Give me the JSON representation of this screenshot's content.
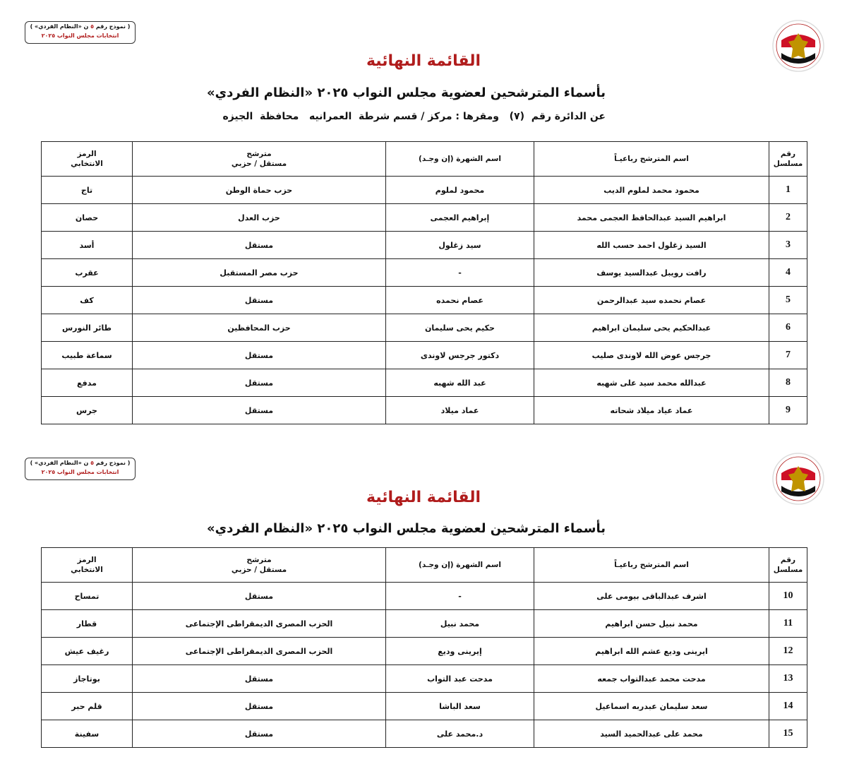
{
  "form_box": {
    "line1_pre": "( نموذج رقم ",
    "line1_num": "٥",
    "line1_post": " ن «النظام الفردي» )",
    "line2": "انتخابات مجلس النواب ٢٠٢٥"
  },
  "logo": {
    "text_ar": "الهيئة الوطنية للانتخابات",
    "text_en": "National Election Authority - Egypt",
    "colors": {
      "red": "#ce1126",
      "black": "#000000",
      "gold": "#c09300"
    }
  },
  "title": "القائمة النهائية",
  "subtitle": "بأسماء المترشحين لعضوية مجلس النواب ٢٠٢٥ «النظام الفردي»",
  "district_line": "عن الدائرة رقم  (٧)   ومقرها : مركز / قسم شرطة  العمرانيه   محافظة  الجيزه",
  "columns": {
    "serial": [
      "رقم",
      "مسلسل"
    ],
    "full_name": "اسم المترشح رباعيـاً",
    "known_as": "اسم الشهرة (إن وجـد)",
    "type": [
      "مترشح",
      "مستقل / حزبي"
    ],
    "symbol": [
      "الرمز",
      "الانتخابي"
    ]
  },
  "page1_rows": [
    {
      "n": "1",
      "name": "محمود محمد لملوم الديب",
      "known": "محمود لملوم",
      "type": "حزب حماة الوطن",
      "symbol": "تاج"
    },
    {
      "n": "2",
      "name": "ابراهيم السيد عبدالحافظ العجمى محمد",
      "known": "إبراهيم العجمى",
      "type": "حزب العدل",
      "symbol": "حصان"
    },
    {
      "n": "3",
      "name": "السيد زغلول احمد حسب الله",
      "known": "سيد زغلول",
      "type": "مستقل",
      "symbol": "أسد"
    },
    {
      "n": "4",
      "name": "رافت رويبل عبدالسيد يوسف",
      "known": "-",
      "type": "حزب مصر المستقبل",
      "symbol": "عقرب"
    },
    {
      "n": "5",
      "name": "عصام نحمده سيد عبدالرحمن",
      "known": "عصام نحمده",
      "type": "مستقل",
      "symbol": "كف"
    },
    {
      "n": "6",
      "name": "عبدالحكيم يحى سليمان ابراهيم",
      "known": "حكيم يحى سليمان",
      "type": "حزب المحافظين",
      "symbol": "طائر النورس"
    },
    {
      "n": "7",
      "name": "جرجس عوض الله لاوندى صليب",
      "known": "دكتور جرجس لاوندى",
      "type": "مستقل",
      "symbol": "سماعة طبيب"
    },
    {
      "n": "8",
      "name": "عبدالله محمد سيد على شهبه",
      "known": "عبد الله شهبه",
      "type": "مستقل",
      "symbol": "مدفع"
    },
    {
      "n": "9",
      "name": "عماد عياد ميلاد شحاته",
      "known": "عماد ميلاد",
      "type": "مستقل",
      "symbol": "جرس"
    }
  ],
  "page2_rows": [
    {
      "n": "10",
      "name": "اشرف عبدالباقى بيومى على",
      "known": "-",
      "type": "مستقل",
      "symbol": "تمساح"
    },
    {
      "n": "11",
      "name": "محمد نبيل حسن ابراهيم",
      "known": "محمد نبيل",
      "type": "الحزب المصرى الديمقراطى الإجتماعى",
      "symbol": "قطار"
    },
    {
      "n": "12",
      "name": "ايرينى وديع عشم الله ابراهيم",
      "known": "إيرينى وديع",
      "type": "الحزب المصرى الديمقراطى الإجتماعى",
      "symbol": "رغيف عيش"
    },
    {
      "n": "13",
      "name": "مدحت محمد عبدالتواب جمعه",
      "known": "مدحت عبد التواب",
      "type": "مستقل",
      "symbol": "بوتاجاز"
    },
    {
      "n": "14",
      "name": "سعد سليمان عبدربه اسماعيل",
      "known": "سعد الباشا",
      "type": "مستقل",
      "symbol": "قلم حبر"
    },
    {
      "n": "15",
      "name": "محمد على عبدالحميد السيد",
      "known": "د.محمد على",
      "type": "مستقل",
      "symbol": "سفينة"
    }
  ]
}
